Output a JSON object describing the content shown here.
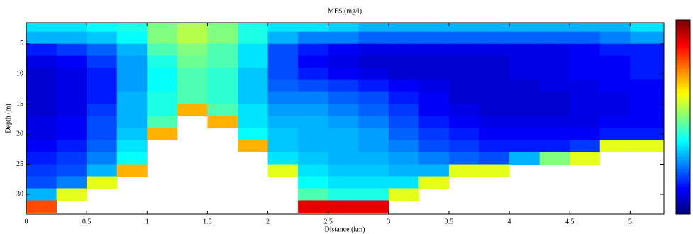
{
  "chart_data": {
    "type": "heatmap",
    "title": "MES (mg/l)",
    "x_label": "Distance (km)",
    "y_label": "Depth (m)",
    "colormap": "jet",
    "clim": [
      0,
      1
    ],
    "xlim": [
      0,
      5.28
    ],
    "ylim": [
      1.5,
      33.3
    ],
    "y_inverted": true,
    "xticks": [
      0,
      0.5,
      1,
      1.5,
      2,
      2.5,
      3,
      3.5,
      4,
      4.5,
      5
    ],
    "yticks": [
      5,
      10,
      15,
      20,
      25,
      30
    ],
    "x_edges": [
      0,
      0.25,
      0.5,
      0.75,
      1,
      1.25,
      1.5,
      1.75,
      2,
      2.25,
      2.5,
      2.75,
      3,
      3.25,
      3.5,
      3.75,
      4,
      4.25,
      4.5,
      4.75,
      5,
      5.28
    ],
    "y_edges": [
      1.5,
      3,
      5,
      7,
      9,
      11,
      13,
      15,
      17,
      19,
      21,
      23,
      25,
      27,
      29,
      31,
      33
    ],
    "values": [
      [
        0.35,
        0.35,
        0.38,
        0.4,
        0.5,
        0.55,
        0.5,
        0.4,
        0.35,
        0.35,
        0.33,
        0.3,
        0.3,
        0.3,
        0.3,
        0.3,
        0.3,
        0.3,
        0.3,
        0.3,
        0.35
      ],
      [
        0.3,
        0.3,
        0.32,
        0.38,
        0.5,
        0.55,
        0.5,
        0.4,
        0.3,
        0.25,
        0.25,
        0.22,
        0.22,
        0.22,
        0.22,
        0.22,
        0.22,
        0.22,
        0.22,
        0.25,
        0.28
      ],
      [
        0.15,
        0.18,
        0.22,
        0.3,
        0.45,
        0.5,
        0.45,
        0.35,
        0.2,
        0.15,
        0.12,
        0.1,
        0.1,
        0.1,
        0.1,
        0.1,
        0.1,
        0.1,
        0.12,
        0.15,
        0.15
      ],
      [
        0.1,
        0.12,
        0.18,
        0.28,
        0.4,
        0.48,
        0.45,
        0.35,
        0.2,
        0.12,
        0.1,
        0.08,
        0.08,
        0.08,
        0.08,
        0.08,
        0.1,
        0.1,
        0.12,
        0.12,
        0.15
      ],
      [
        0.08,
        0.1,
        0.15,
        0.28,
        0.38,
        0.45,
        0.42,
        0.32,
        0.2,
        0.15,
        0.12,
        0.1,
        0.08,
        0.08,
        0.08,
        0.08,
        0.1,
        0.1,
        0.12,
        0.12,
        0.15
      ],
      [
        0.08,
        0.1,
        0.15,
        0.28,
        0.38,
        0.45,
        0.42,
        0.32,
        0.22,
        0.2,
        0.18,
        0.15,
        0.12,
        0.1,
        0.08,
        0.08,
        0.08,
        0.1,
        0.1,
        0.12,
        0.12
      ],
      [
        0.08,
        0.1,
        0.15,
        0.3,
        0.4,
        0.45,
        0.42,
        0.32,
        0.25,
        0.25,
        0.22,
        0.2,
        0.15,
        0.12,
        0.08,
        0.08,
        0.08,
        0.08,
        0.1,
        0.1,
        0.12
      ],
      [
        0.08,
        0.1,
        0.18,
        0.3,
        0.4,
        0.7,
        0.45,
        0.35,
        0.28,
        0.28,
        0.25,
        0.22,
        0.18,
        0.12,
        0.1,
        0.08,
        0.08,
        0.08,
        0.1,
        0.1,
        0.12
      ],
      [
        0.1,
        0.12,
        0.2,
        0.3,
        0.45,
        null,
        0.7,
        0.35,
        0.3,
        0.3,
        0.28,
        0.25,
        0.2,
        0.15,
        0.12,
        0.1,
        0.1,
        0.1,
        0.1,
        0.12,
        0.12
      ],
      [
        0.1,
        0.12,
        0.2,
        0.32,
        0.7,
        null,
        null,
        0.38,
        0.32,
        0.3,
        0.3,
        0.28,
        0.22,
        0.18,
        0.15,
        0.12,
        0.12,
        0.12,
        0.12,
        0.15,
        0.15
      ],
      [
        0.12,
        0.15,
        0.22,
        0.35,
        null,
        null,
        null,
        0.7,
        0.32,
        0.3,
        0.3,
        0.28,
        0.25,
        0.2,
        0.18,
        0.15,
        0.15,
        0.15,
        0.18,
        0.6,
        0.6
      ],
      [
        0.15,
        0.18,
        0.25,
        0.38,
        null,
        null,
        null,
        null,
        0.35,
        0.32,
        0.3,
        0.3,
        0.28,
        0.25,
        0.22,
        0.2,
        0.3,
        0.5,
        0.6,
        null,
        null
      ],
      [
        0.18,
        0.2,
        0.3,
        0.7,
        null,
        null,
        null,
        null,
        0.6,
        0.35,
        0.32,
        0.32,
        0.3,
        0.3,
        0.6,
        0.6,
        null,
        null,
        null,
        null,
        null
      ],
      [
        0.2,
        0.25,
        0.6,
        null,
        null,
        null,
        null,
        null,
        null,
        0.38,
        0.35,
        0.35,
        0.35,
        0.6,
        null,
        null,
        null,
        null,
        null,
        null,
        null
      ],
      [
        0.3,
        0.6,
        null,
        null,
        null,
        null,
        null,
        null,
        null,
        0.45,
        0.4,
        0.4,
        0.6,
        null,
        null,
        null,
        null,
        null,
        null,
        null,
        null
      ],
      [
        0.8,
        null,
        null,
        null,
        null,
        null,
        null,
        null,
        null,
        0.9,
        0.9,
        0.9,
        null,
        null,
        null,
        null,
        null,
        null,
        null,
        null,
        null
      ]
    ]
  }
}
